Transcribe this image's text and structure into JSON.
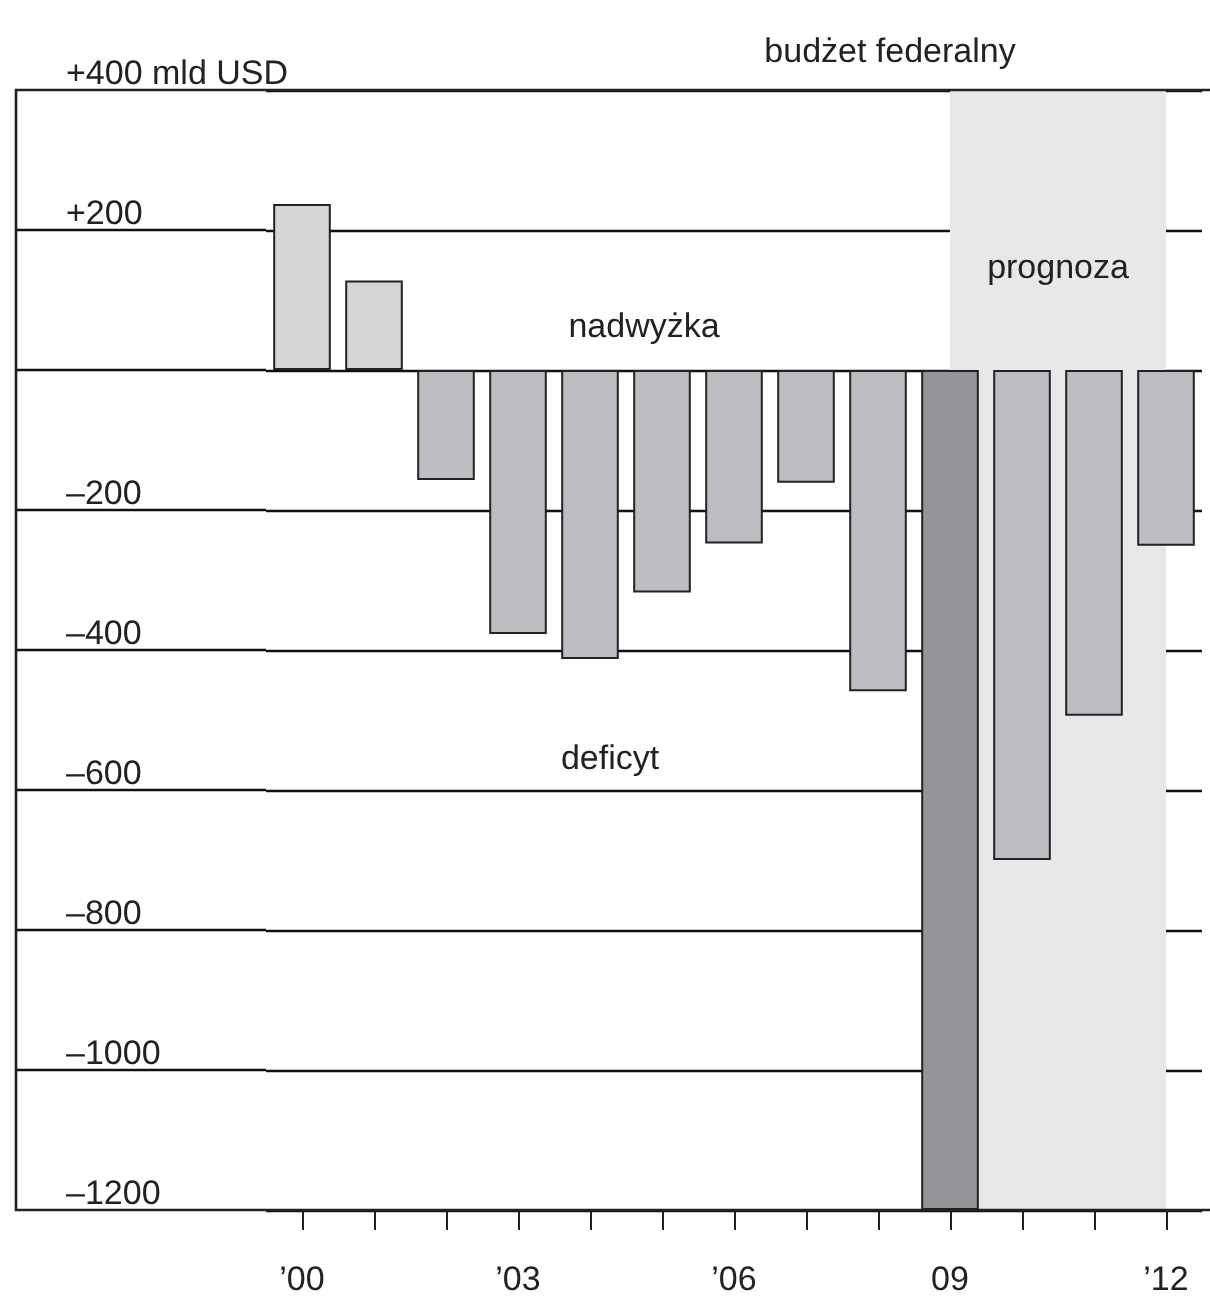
{
  "chart_data": {
    "type": "bar",
    "title": "budżet federalny",
    "categories": [
      "’00",
      null,
      null,
      "’03",
      null,
      null,
      "’06",
      null,
      null,
      "09",
      null,
      null,
      "’12"
    ],
    "values": [
      237,
      128,
      -157,
      -377,
      -413,
      -318,
      -248,
      -161,
      -459,
      -1200,
      -700,
      -494,
      -251
    ],
    "colors": [
      "#d4d5d7",
      "#d4d5d7",
      "#bdbec2",
      "#bdbec2",
      "#bdbec2",
      "#bdbec2",
      "#bdbec2",
      "#bdbec2",
      "#bdbec2",
      "#939598",
      "#bdbec2",
      "#bdbec2",
      "#bdbec2"
    ],
    "ylim": [
      -1200,
      400
    ],
    "yticks": [
      {
        "value": -1200,
        "label": "–1200"
      },
      {
        "value": -1000,
        "label": "–1000"
      },
      {
        "value": -800,
        "label": "–800"
      },
      {
        "value": -600,
        "label": "–600"
      },
      {
        "value": -400,
        "label": "–400"
      },
      {
        "value": -200,
        "label": "–200"
      },
      {
        "value": 0,
        "label": null
      },
      {
        "value": 200,
        "label": "+200"
      },
      {
        "value": 400,
        "label": "+400 mld USD"
      }
    ],
    "grid": "y",
    "bands": [
      {
        "axis": "x",
        "from": "09",
        "to": "’12",
        "label": "prognoza",
        "color": "#e8e8ea"
      }
    ],
    "annotations": [
      "nadwyżka",
      "deficyt"
    ]
  }
}
